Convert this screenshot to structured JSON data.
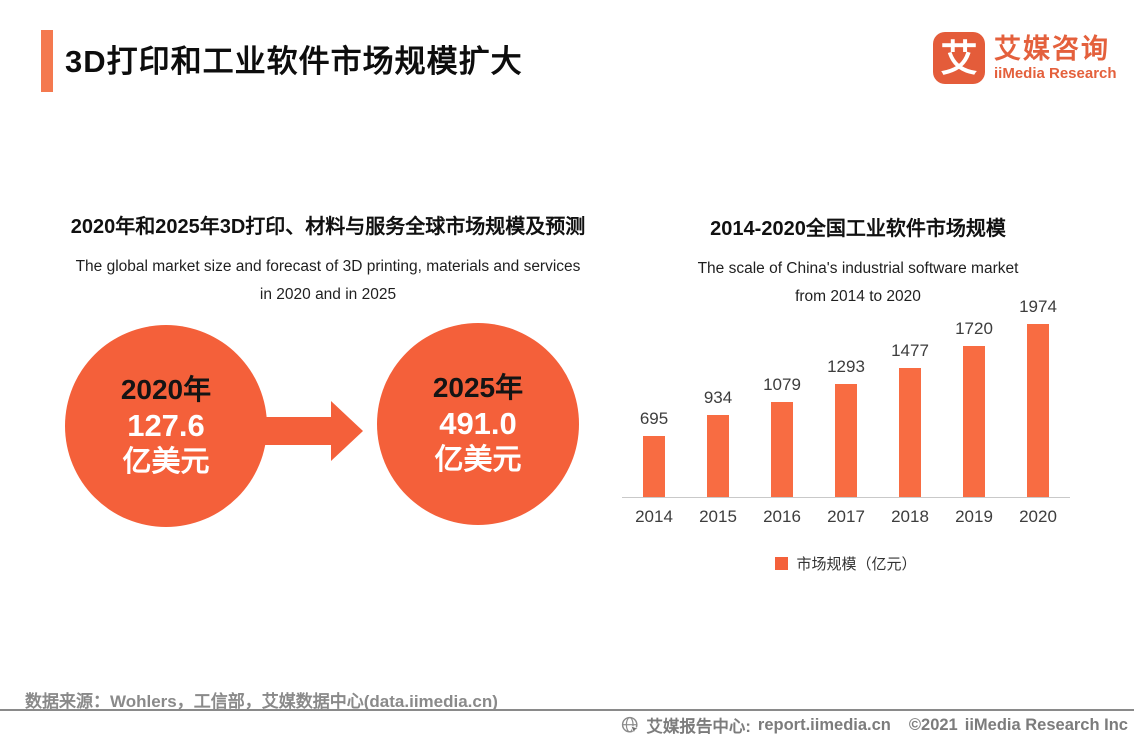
{
  "header": {
    "title": "3D打印和工业软件市场规模扩大",
    "logo": {
      "icon_char": "艾",
      "name_cn": "艾媒咨询",
      "name_en": "iiMedia Research"
    }
  },
  "left_panel": {
    "title_cn": "2020年和2025年3D打印、材料与服务全球市场规模及预测",
    "subtitle_en_line1": "The global market size and forecast of 3D printing, materials and services",
    "subtitle_en_line2": "in 2020 and in 2025",
    "circles": [
      {
        "year": "2020年",
        "value": "127.6",
        "unit": "亿美元"
      },
      {
        "year": "2025年",
        "value": "491.0",
        "unit": "亿美元"
      }
    ]
  },
  "right_panel": {
    "title_cn": "2014-2020全国工业软件市场规模",
    "subtitle_en_line1": "The scale of China's industrial software market",
    "subtitle_en_line2": "from 2014 to 2020",
    "legend_label": "市场规模（亿元）"
  },
  "chart_data": {
    "type": "bar",
    "title": "2014-2020全国工业软件市场规模",
    "categories": [
      "2014",
      "2015",
      "2016",
      "2017",
      "2018",
      "2019",
      "2020"
    ],
    "values": [
      695,
      934,
      1079,
      1293,
      1477,
      1720,
      1974
    ],
    "series_name": "市场规模（亿元）",
    "xlabel": "",
    "ylabel": "",
    "ylim": [
      0,
      2100
    ],
    "grid": false,
    "legend_position": "bottom",
    "bar_color": "#F86C42",
    "data_labels_shown": true
  },
  "footer": {
    "source": "数据来源：Wohlers，工信部，艾媒数据中心(data.iimedia.cn)",
    "report_center_label": "艾媒报告中心:",
    "report_center_url": "report.iimedia.cn",
    "copyright": "©2021",
    "company": "iiMedia Research  Inc"
  },
  "colors": {
    "accent_orange": "#F4794F",
    "circle_orange": "#F4603A",
    "bar_orange": "#F86C42",
    "logo_orange": "#E4603C",
    "footer_gray": "#8a8a8a"
  }
}
